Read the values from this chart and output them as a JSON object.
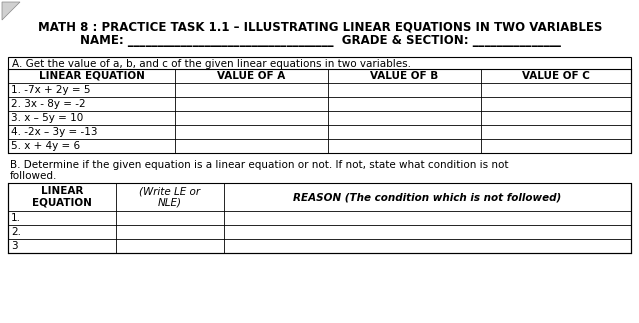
{
  "title_line1": "MATH 8 : PRACTICE TASK 1.1 – ILLUSTRATING LINEAR EQUATIONS IN TWO VARIABLES",
  "title_line2": "NAME: ___________________________________  GRADE & SECTION: _______________",
  "section_a_header": "A. Get the value of a, b, and c of the given linear equations in two variables.",
  "table_a_headers": [
    "LINEAR EQUATION",
    "VALUE OF A",
    "VALUE OF B",
    "VALUE OF C"
  ],
  "table_a_rows": [
    "1. -7x + 2y = 5",
    "2. 3x - 8y = -2",
    "3. x – 5y = 10",
    "4. -2x – 3y = -13",
    "5. x + 4y = 6"
  ],
  "section_b_header1": "B. Determine if the given equation is a linear equation or not. If not, state what condition is not",
  "section_b_header2": "followed.",
  "table_b_col1_header": "LINEAR\nEQUATION",
  "table_b_col2_header": "(Write LE or\nNLE)",
  "table_b_col3_header": "REASON (The condition which is not followed)",
  "table_b_rows": [
    "1.",
    "2.",
    "3"
  ],
  "bg_color": "#ffffff",
  "border_color": "#000000",
  "title_fontsize": 8.5,
  "body_fontsize": 7.5,
  "header_fontsize": 7.5
}
